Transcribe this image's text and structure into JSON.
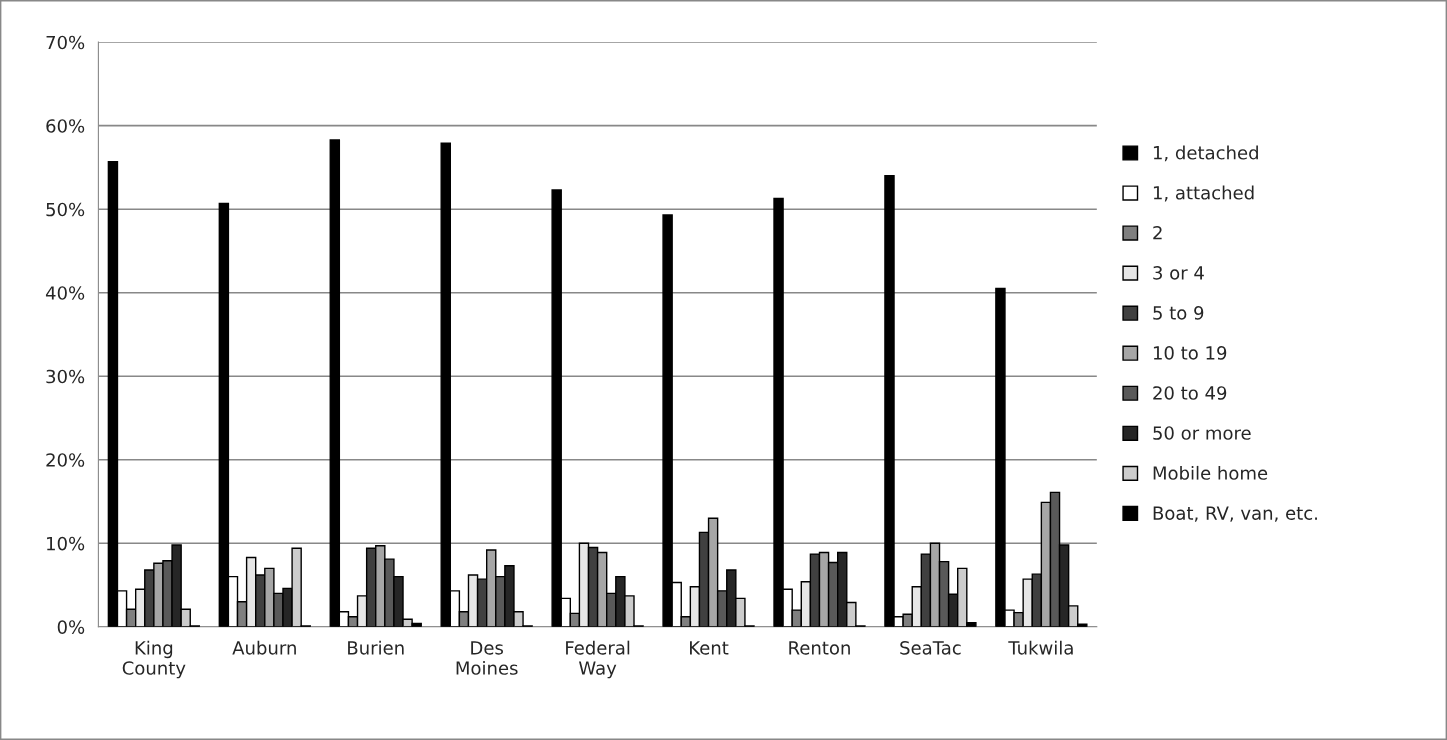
{
  "chart_data": {
    "type": "bar",
    "categories": [
      "King\nCounty",
      "Auburn",
      "Burien",
      "Des\nMoines",
      "Federal\nWay",
      "Kent",
      "Renton",
      "SeaTac",
      "Tukwila"
    ],
    "series": [
      {
        "name": "1, detached",
        "color": "#000000",
        "values": [
          55.7,
          50.7,
          58.3,
          57.9,
          52.3,
          49.3,
          51.3,
          54.0,
          40.5
        ]
      },
      {
        "name": "1, attached",
        "color": "#ffffff",
        "values": [
          4.3,
          6.0,
          1.8,
          4.3,
          3.4,
          5.3,
          4.5,
          1.2,
          2.0
        ]
      },
      {
        "name": "2",
        "color": "#7f7f7f",
        "values": [
          2.1,
          3.0,
          1.2,
          1.8,
          1.6,
          1.2,
          2.0,
          1.5,
          1.7
        ]
      },
      {
        "name": "3 or 4",
        "color": "#e6e6e6",
        "values": [
          4.5,
          8.3,
          3.7,
          6.2,
          10.0,
          4.8,
          5.4,
          4.8,
          5.7
        ]
      },
      {
        "name": "5 to 9",
        "color": "#404040",
        "values": [
          6.8,
          6.2,
          9.4,
          5.7,
          9.5,
          11.3,
          8.7,
          8.7,
          6.3
        ]
      },
      {
        "name": "10 to 19",
        "color": "#a6a6a6",
        "values": [
          7.6,
          7.0,
          9.7,
          9.2,
          8.9,
          13.0,
          8.9,
          10.0,
          14.9
        ]
      },
      {
        "name": "20 to 49",
        "color": "#595959",
        "values": [
          7.9,
          4.0,
          8.1,
          6.0,
          4.0,
          4.3,
          7.7,
          7.8,
          16.1
        ]
      },
      {
        "name": "50 or more",
        "color": "#262626",
        "values": [
          9.8,
          4.6,
          6.0,
          7.3,
          6.0,
          6.8,
          8.9,
          3.9,
          9.8
        ]
      },
      {
        "name": "Mobile home",
        "color": "#cccccc",
        "values": [
          2.1,
          9.4,
          0.9,
          1.8,
          3.7,
          3.4,
          2.9,
          7.0,
          2.5
        ]
      },
      {
        "name": "Boat, RV, van, etc.",
        "color": "#000000",
        "values": [
          0.1,
          0.1,
          0.4,
          0.1,
          0.1,
          0.1,
          0.1,
          0.5,
          0.3
        ]
      }
    ],
    "ylim": [
      0,
      70
    ],
    "yticks": [
      {
        "value": 0,
        "label": "0%"
      },
      {
        "value": 10,
        "label": "10%"
      },
      {
        "value": 20,
        "label": "20%"
      },
      {
        "value": 30,
        "label": "30%"
      },
      {
        "value": 40,
        "label": "40%"
      },
      {
        "value": 50,
        "label": "50%"
      },
      {
        "value": 60,
        "label": "60%"
      },
      {
        "value": 70,
        "label": "70%"
      }
    ],
    "grid": "y",
    "legend": "right"
  }
}
